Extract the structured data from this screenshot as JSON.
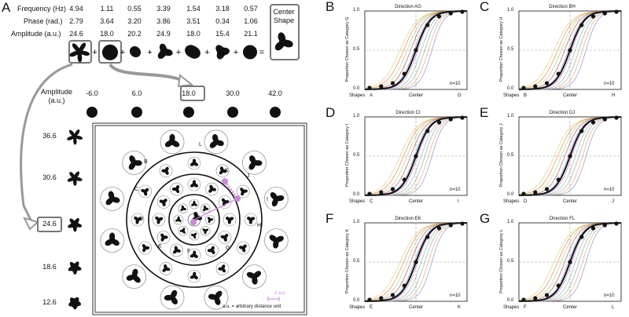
{
  "panel_a": {
    "letter": "A",
    "row_labels": [
      "Frequency (Hz)",
      "Phase (rad.)",
      "Amplitude (a.u.)"
    ],
    "columns": [
      {
        "freq": "4.94",
        "phase": "2.79",
        "amp": "24.6"
      },
      {
        "freq": "1.11",
        "phase": "3.64",
        "amp": "18.0"
      },
      {
        "freq": "0.55",
        "phase": "3.20",
        "amp": "20.2"
      },
      {
        "freq": "3.39",
        "phase": "3.86",
        "amp": "24.9"
      },
      {
        "freq": "1.54",
        "phase": "3.51",
        "amp": "18.0"
      },
      {
        "freq": "3.18",
        "phase": "0.34",
        "amp": "15.4"
      },
      {
        "freq": "0.57",
        "phase": "1.06",
        "amp": "21.1"
      }
    ],
    "center_shape_label": "Center\nShape",
    "amplitude_axis_label": "Amplitude\n(a.u.)",
    "amplitude_values": [
      "-6.0",
      "6.0",
      "18.0",
      "30.0",
      "42.0"
    ],
    "vertical_values": [
      "36.6",
      "30.6",
      "24.6",
      "18.6",
      "12.6"
    ],
    "ring_letters": [
      "A",
      "B",
      "C",
      "D",
      "E",
      "F",
      "G",
      "H",
      "I",
      "J",
      "K",
      "L"
    ],
    "scale_label": "2 a.u.",
    "footnote": "a.u. = arbitrary distance unit"
  },
  "chart_data": [
    {
      "letter": "B",
      "type": "line",
      "title": "Direction AG",
      "ylabel": "Proportion Chosen as Category G",
      "xlabel_left": "A",
      "xlabel_center": "Center",
      "xlabel_right": "G",
      "xlabel_shapes": "Shapes",
      "n": "n=10",
      "yticks": [
        "1.0",
        "0.5",
        "0.0"
      ],
      "ylim": [
        0,
        1
      ]
    },
    {
      "letter": "C",
      "type": "line",
      "title": "Direction BH",
      "ylabel": "Proportion Chosen as Category H",
      "xlabel_left": "B",
      "xlabel_center": "Center",
      "xlabel_right": "H",
      "xlabel_shapes": "Shapes",
      "n": "n=10",
      "yticks": [
        "1.0",
        "0.5",
        "0.0"
      ],
      "ylim": [
        0,
        1
      ]
    },
    {
      "letter": "D",
      "type": "line",
      "title": "Direction CI",
      "ylabel": "Proportion Chosen as Category I",
      "xlabel_left": "C",
      "xlabel_center": "Center",
      "xlabel_right": "I",
      "xlabel_shapes": "Shapes",
      "n": "n=10",
      "yticks": [
        "1.0",
        "0.5",
        "0.0"
      ],
      "ylim": [
        0,
        1
      ]
    },
    {
      "letter": "E",
      "type": "line",
      "title": "Direction DJ",
      "ylabel": "Proportion Chosen as Category J",
      "xlabel_left": "D",
      "xlabel_center": "Center",
      "xlabel_right": "J",
      "xlabel_shapes": "Shapes",
      "n": "n=10",
      "yticks": [
        "1.0",
        "0.5",
        "0.0"
      ],
      "ylim": [
        0,
        1
      ]
    },
    {
      "letter": "F",
      "type": "line",
      "title": "Direction EK",
      "ylabel": "Proportion Chosen as Category K",
      "xlabel_left": "E",
      "xlabel_center": "Center",
      "xlabel_right": "K",
      "xlabel_shapes": "Shapes",
      "n": "n=10",
      "yticks": [
        "1.0",
        "0.5",
        "0.0"
      ],
      "ylim": [
        0,
        1
      ]
    },
    {
      "letter": "G",
      "type": "line",
      "title": "Direction FL",
      "ylabel": "Proportion Chosen as Category L",
      "xlabel_left": "F",
      "xlabel_center": "Center",
      "xlabel_right": "L",
      "xlabel_shapes": "Shapes",
      "n": "n=10",
      "yticks": [
        "1.0",
        "0.5",
        "0.0"
      ],
      "ylim": [
        0,
        1
      ]
    }
  ],
  "mean_points": [
    0.02,
    0.04,
    0.08,
    0.2,
    0.5,
    0.82,
    0.93,
    0.97,
    0.99
  ],
  "colors": {
    "accent": "#c98ad8",
    "line": "#111111",
    "grid": "#999999"
  }
}
